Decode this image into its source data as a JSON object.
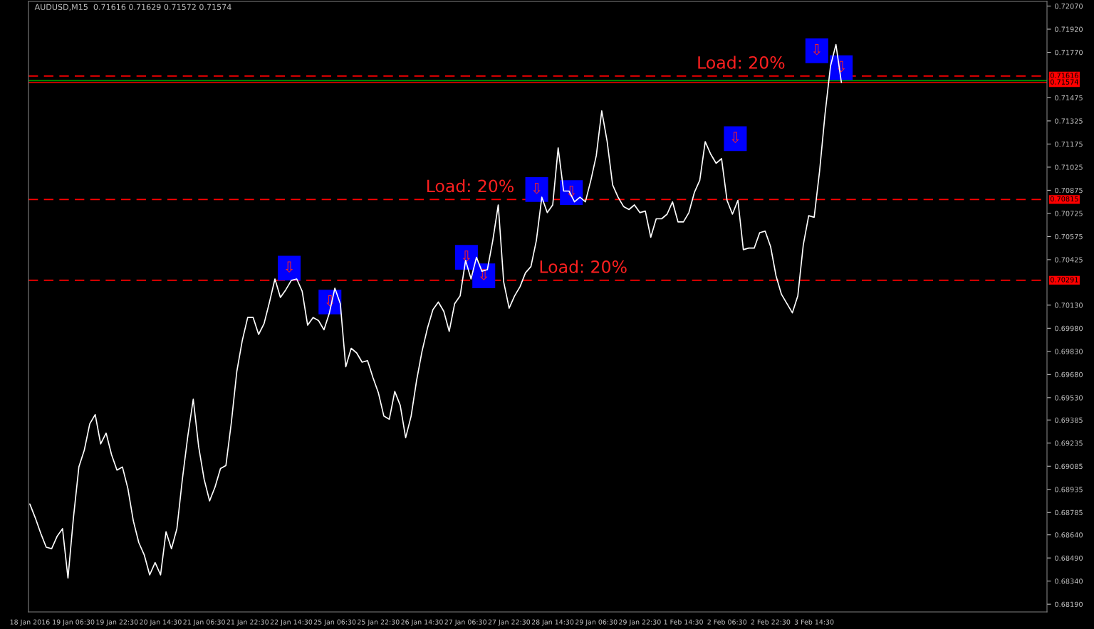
{
  "chart_data": {
    "type": "line",
    "title": "AUDUSD,M15  0.71616 0.71629 0.71572 0.71574",
    "categories": [
      "18 Jan 2016",
      null,
      null,
      null,
      null,
      null,
      null,
      null,
      "19 Jan 06:30",
      null,
      null,
      null,
      null,
      null,
      null,
      null,
      "19 Jan 22:30",
      null,
      null,
      null,
      null,
      null,
      null,
      null,
      "20 Jan 14:30",
      null,
      null,
      null,
      null,
      null,
      null,
      null,
      "21 Jan 06:30",
      null,
      null,
      null,
      null,
      null,
      null,
      null,
      "21 Jan 22:30",
      null,
      null,
      null,
      null,
      null,
      null,
      null,
      "22 Jan 14:30",
      null,
      null,
      null,
      null,
      null,
      null,
      null,
      "25 Jan 06:30",
      null,
      null,
      null,
      null,
      null,
      null,
      null,
      "25 Jan 22:30",
      null,
      null,
      null,
      null,
      null,
      null,
      null,
      "26 Jan 14:30",
      null,
      null,
      null,
      null,
      null,
      null,
      null,
      "27 Jan 06:30",
      null,
      null,
      null,
      null,
      null,
      null,
      null,
      "27 Jan 22:30",
      null,
      null,
      null,
      null,
      null,
      null,
      null,
      "28 Jan 14:30",
      null,
      null,
      null,
      null,
      null,
      null,
      null,
      "29 Jan 06:30",
      null,
      null,
      null,
      null,
      null,
      null,
      null,
      "29 Jan 22:30",
      null,
      null,
      null,
      null,
      null,
      null,
      null,
      "1 Feb 14:30",
      null,
      null,
      null,
      null,
      null,
      null,
      null,
      "2 Feb 06:30",
      null,
      null,
      null,
      null,
      null,
      null,
      null,
      "2 Feb 22:30",
      null,
      null,
      null,
      null,
      null,
      null,
      null,
      "3 Feb 14:30",
      null,
      null,
      null,
      null,
      null,
      null,
      null,
      null,
      null,
      null,
      null,
      null,
      null,
      null,
      null,
      null,
      null,
      null,
      null,
      null,
      null,
      null,
      null,
      null,
      null,
      null,
      null,
      null,
      null,
      null,
      null,
      null,
      null,
      null,
      null,
      null,
      null,
      null,
      null,
      null,
      null,
      null
    ],
    "ylim": [
      0.6814,
      0.721
    ],
    "yticks": [
      {
        "value": 0.7207,
        "label": "0.72070"
      },
      {
        "value": 0.7192,
        "label": "0.71920"
      },
      {
        "value": 0.7177,
        "label": "0.71770"
      },
      {
        "value": 0.71475,
        "label": "0.71475"
      },
      {
        "value": 0.71325,
        "label": "0.71325"
      },
      {
        "value": 0.71175,
        "label": "0.71175"
      },
      {
        "value": 0.71025,
        "label": "0.71025"
      },
      {
        "value": 0.70875,
        "label": "0.70875"
      },
      {
        "value": 0.70725,
        "label": "0.70725"
      },
      {
        "value": 0.70575,
        "label": "0.70575"
      },
      {
        "value": 0.70425,
        "label": "0.70425"
      },
      {
        "value": 0.7013,
        "label": "0.70130"
      },
      {
        "value": 0.6998,
        "label": "0.69980"
      },
      {
        "value": 0.6983,
        "label": "0.69830"
      },
      {
        "value": 0.6968,
        "label": "0.69680"
      },
      {
        "value": 0.6953,
        "label": "0.69530"
      },
      {
        "value": 0.69385,
        "label": "0.69385"
      },
      {
        "value": 0.69235,
        "label": "0.69235"
      },
      {
        "value": 0.69085,
        "label": "0.69085"
      },
      {
        "value": 0.68935,
        "label": "0.68935"
      },
      {
        "value": 0.68785,
        "label": "0.68785"
      },
      {
        "value": 0.6864,
        "label": "0.68640"
      },
      {
        "value": 0.6849,
        "label": "0.68490"
      },
      {
        "value": 0.6834,
        "label": "0.68340"
      },
      {
        "value": 0.6819,
        "label": "0.68190"
      }
    ],
    "marker": "none",
    "line_style": "solid",
    "series": [
      {
        "color": "#ffffff",
        "values": [
          0.6884,
          0.6875,
          0.6865,
          0.6856,
          0.6855,
          0.6863,
          0.6868,
          0.6836,
          0.6875,
          0.6908,
          0.6919,
          0.6936,
          0.6942,
          0.6923,
          0.693,
          0.6916,
          0.6906,
          0.6908,
          0.6894,
          0.6873,
          0.6859,
          0.6851,
          0.6838,
          0.6846,
          0.6838,
          0.6866,
          0.6855,
          0.6868,
          0.69,
          0.6928,
          0.6952,
          0.6921,
          0.69,
          0.6886,
          0.6895,
          0.6907,
          0.6909,
          0.6937,
          0.697,
          0.699,
          0.7005,
          0.7005,
          0.6994,
          0.7001,
          0.7015,
          0.703,
          0.7018,
          0.7023,
          0.7029,
          0.703,
          0.7022,
          0.7,
          0.7005,
          0.7003,
          0.6997,
          0.7008,
          0.7024,
          0.7014,
          0.6973,
          0.6985,
          0.6982,
          0.6976,
          0.6977,
          0.6966,
          0.6956,
          0.6941,
          0.6939,
          0.6957,
          0.6948,
          0.6927,
          0.6941,
          0.6964,
          0.6983,
          0.6998,
          0.701,
          0.7015,
          0.7009,
          0.6996,
          0.7014,
          0.7019,
          0.7042,
          0.703,
          0.7044,
          0.7035,
          0.7036,
          0.7055,
          0.7078,
          0.7028,
          0.7011,
          0.7019,
          0.7025,
          0.7034,
          0.7038,
          0.7055,
          0.7083,
          0.7073,
          0.7078,
          0.7115,
          0.7087,
          0.7087,
          0.708,
          0.7083,
          0.708,
          0.7094,
          0.711,
          0.7139,
          0.7119,
          0.7091,
          0.7083,
          0.7077,
          0.7075,
          0.7078,
          0.7073,
          0.7074,
          0.7057,
          0.7069,
          0.7069,
          0.7072,
          0.708,
          0.7067,
          0.7067,
          0.7073,
          0.7086,
          0.7094,
          0.7119,
          0.7111,
          0.7105,
          0.7108,
          0.7081,
          0.7072,
          0.7081,
          0.7049,
          0.705,
          0.705,
          0.706,
          0.7061,
          0.7051,
          0.7032,
          0.702,
          0.7014,
          0.7008,
          0.7019,
          0.7052,
          0.7071,
          0.707,
          0.71,
          0.7137,
          0.7168,
          0.7182,
          0.71574,
          null,
          null,
          null,
          null,
          null,
          null,
          null,
          null,
          null,
          null,
          null,
          null,
          null,
          null,
          null,
          null,
          null,
          null,
          null,
          null,
          null,
          null,
          null,
          null,
          null,
          null,
          null,
          null,
          null,
          null,
          null,
          null,
          null,
          null,
          null,
          null,
          null
        ]
      }
    ],
    "ref_lines": [
      {
        "axis": "y",
        "value": 0.71616,
        "label": "0.71616",
        "color": "#ff0000",
        "line_style": "dashed"
      },
      {
        "axis": "y",
        "value": 0.71586,
        "color": "#00a000",
        "line_style": "solid"
      },
      {
        "axis": "y",
        "value": 0.71574,
        "label": "0.71574",
        "color": "#ff0000",
        "line_style": "solid"
      },
      {
        "axis": "y",
        "value": 0.70815,
        "label": "0.70815",
        "color": "#ff0000",
        "line_style": "dashed"
      },
      {
        "axis": "y",
        "value": 0.70291,
        "label": "0.70291",
        "color": "#ff0000",
        "line_style": "dashed"
      }
    ],
    "annotations": [
      {
        "text": "Load: 20%",
        "y": 0.71616
      },
      {
        "text": "Load: 20%",
        "y": 0.70815
      },
      {
        "text": "Load: 20%",
        "y": 0.70291
      },
      {
        "text": "⇩",
        "y": 0.7037
      },
      {
        "text": "⇩",
        "y": 0.7015
      },
      {
        "text": "⇩",
        "y": 0.7044
      },
      {
        "text": "⇩",
        "y": 0.7032
      },
      {
        "text": "⇩",
        "y": 0.7088
      },
      {
        "text": "⇩",
        "y": 0.7086
      },
      {
        "text": "⇩",
        "y": 0.7121
      },
      {
        "text": "⇩",
        "y": 0.7178
      },
      {
        "text": "⇩",
        "y": 0.7167
      }
    ]
  }
}
